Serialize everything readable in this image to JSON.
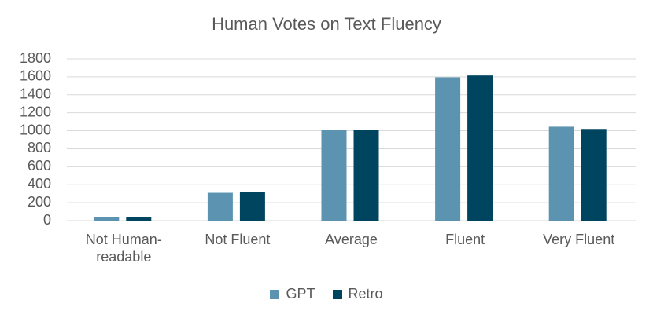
{
  "chart_data": {
    "type": "bar",
    "title": "Human Votes on Text Fluency",
    "categories": [
      "Not Human-readable",
      "Not Fluent",
      "Average",
      "Fluent",
      "Very Fluent"
    ],
    "series": [
      {
        "name": "GPT",
        "color": "#5b93b0",
        "values": [
          35,
          310,
          1010,
          1595,
          1045
        ]
      },
      {
        "name": "Retro",
        "color": "#004560",
        "values": [
          38,
          315,
          1005,
          1615,
          1020
        ]
      }
    ],
    "ylim": [
      0,
      1800
    ],
    "yticks": [
      0,
      200,
      400,
      600,
      800,
      1000,
      1200,
      1400,
      1600,
      1800
    ],
    "grid": true,
    "legend": "bottom"
  }
}
